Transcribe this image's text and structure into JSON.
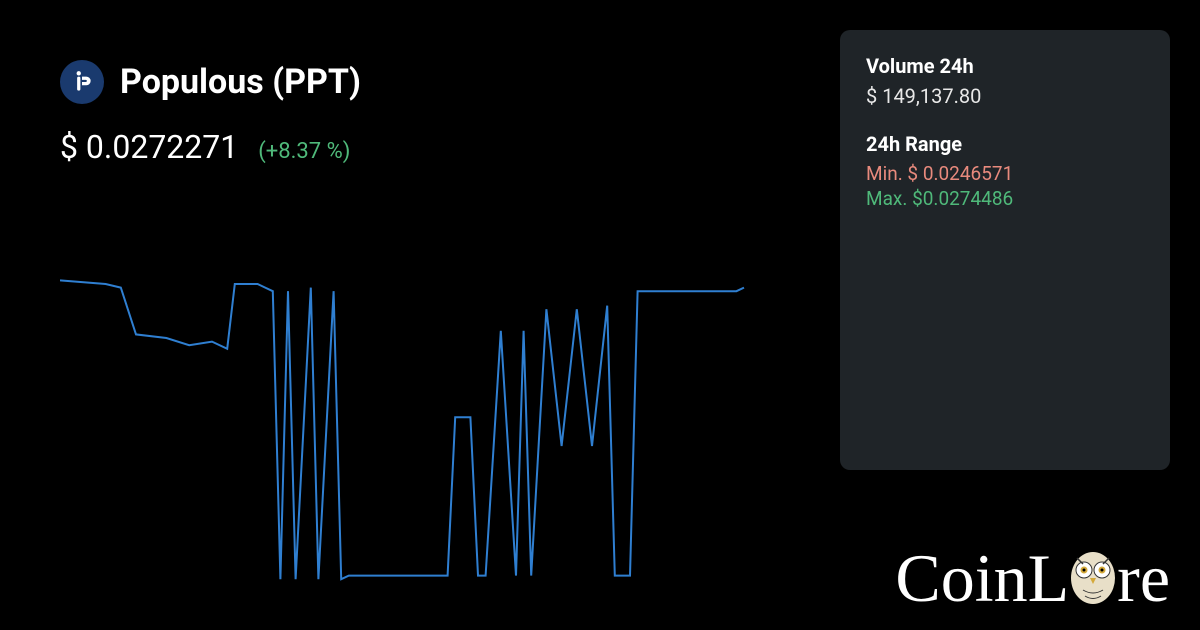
{
  "coin": {
    "name": "Populous (PPT)",
    "logo_bg": "#1a3a6e",
    "logo_fg": "#ffffff"
  },
  "price": {
    "value": "$ 0.0272271",
    "change": "(+8.37 %)",
    "change_color": "#4fb97a"
  },
  "stats": {
    "volume_label": "Volume 24h",
    "volume_value": "$ 149,137.80",
    "range_label": "24h Range",
    "min_label": "Min. $ 0.0246571",
    "min_color": "#e88a7d",
    "max_label": "Max. $0.0274486",
    "max_color": "#4fb97a",
    "panel_bg": "#1f2428"
  },
  "chart": {
    "type": "line",
    "line_color": "#2f7fd1",
    "line_width": 2,
    "background": "#000000",
    "xlim": [
      0,
      100
    ],
    "ylim": [
      0,
      100
    ],
    "points": [
      [
        0,
        86
      ],
      [
        6,
        85
      ],
      [
        8,
        84
      ],
      [
        10,
        71
      ],
      [
        14,
        70
      ],
      [
        17,
        68
      ],
      [
        20,
        69
      ],
      [
        22,
        67
      ],
      [
        23,
        85
      ],
      [
        26,
        85
      ],
      [
        27,
        84
      ],
      [
        28,
        83
      ],
      [
        29,
        3
      ],
      [
        30,
        83
      ],
      [
        31,
        3
      ],
      [
        33,
        84
      ],
      [
        34,
        3
      ],
      [
        36,
        83
      ],
      [
        37,
        3
      ],
      [
        38,
        4
      ],
      [
        50,
        4
      ],
      [
        51,
        4
      ],
      [
        52,
        48
      ],
      [
        54,
        48
      ],
      [
        55,
        4
      ],
      [
        56,
        4
      ],
      [
        58,
        72
      ],
      [
        60,
        4
      ],
      [
        61,
        72
      ],
      [
        62,
        4
      ],
      [
        64,
        78
      ],
      [
        66,
        40
      ],
      [
        68,
        78
      ],
      [
        70,
        40
      ],
      [
        72,
        79
      ],
      [
        73,
        4
      ],
      [
        75,
        4
      ],
      [
        76,
        83
      ],
      [
        89,
        83
      ],
      [
        90,
        84
      ]
    ]
  },
  "brand": {
    "text_left": "CoinL",
    "text_right": "re",
    "color": "#ffffff",
    "owl_color": "#e8dfc8",
    "owl_accent": "#d4a93a"
  },
  "colors": {
    "page_bg": "#000000",
    "text_primary": "#ffffff"
  }
}
